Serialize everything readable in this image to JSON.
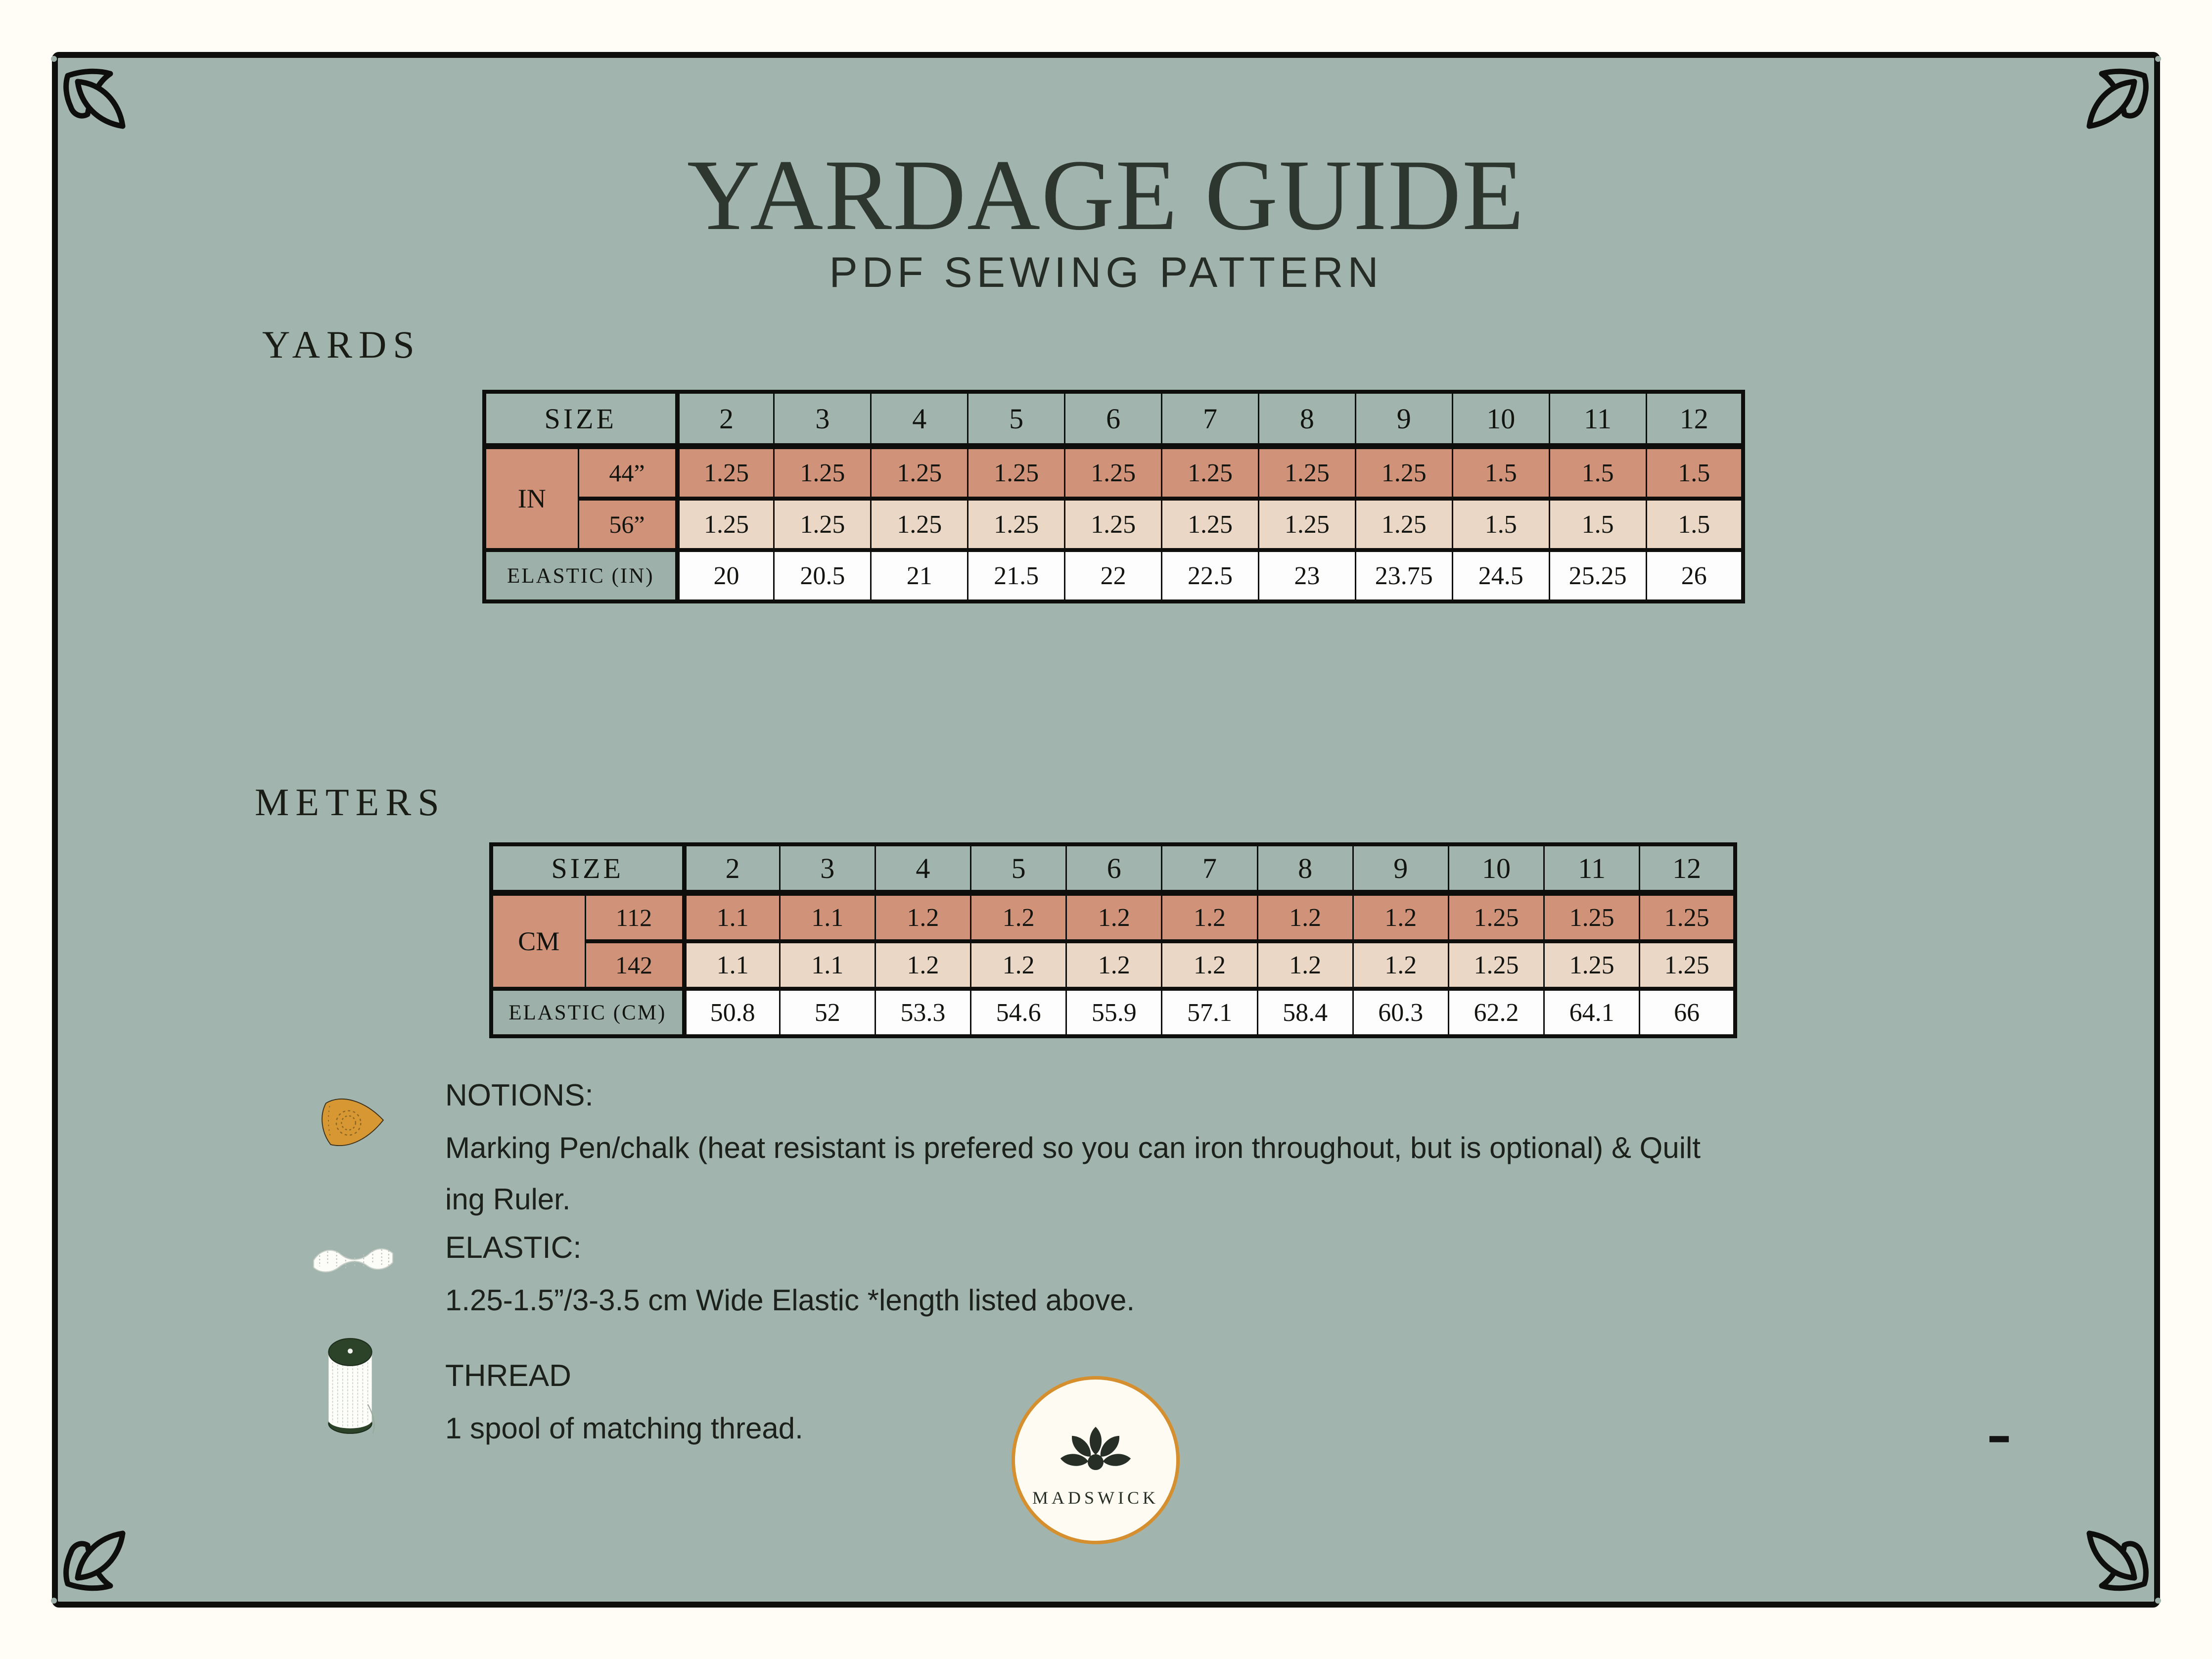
{
  "header": {
    "title": "YARDAGE GUIDE",
    "subtitle": "PDF SEWING PATTERN"
  },
  "sections": {
    "yards_label": "YARDS",
    "meters_label": "METERS"
  },
  "yards_table": {
    "size_header": "SIZE",
    "unit_label": "IN",
    "sizes": [
      "2",
      "3",
      "4",
      "5",
      "6",
      "7",
      "8",
      "9",
      "10",
      "11",
      "12"
    ],
    "rows": [
      {
        "label": "44”",
        "values": [
          "1.25",
          "1.25",
          "1.25",
          "1.25",
          "1.25",
          "1.25",
          "1.25",
          "1.25",
          "1.5",
          "1.5",
          "1.5"
        ]
      },
      {
        "label": "56”",
        "values": [
          "1.25",
          "1.25",
          "1.25",
          "1.25",
          "1.25",
          "1.25",
          "1.25",
          "1.25",
          "1.5",
          "1.5",
          "1.5"
        ]
      }
    ],
    "elastic_label": "ELASTIC (IN)",
    "elastic_values": [
      "20",
      "20.5",
      "21",
      "21.5",
      "22",
      "22.5",
      "23",
      "23.75",
      "24.5",
      "25.25",
      "26"
    ]
  },
  "meters_table": {
    "size_header": "SIZE",
    "unit_label": "CM",
    "sizes": [
      "2",
      "3",
      "4",
      "5",
      "6",
      "7",
      "8",
      "9",
      "10",
      "11",
      "12"
    ],
    "rows": [
      {
        "label": "112",
        "values": [
          "1.1",
          "1.1",
          "1.2",
          "1.2",
          "1.2",
          "1.2",
          "1.2",
          "1.2",
          "1.25",
          "1.25",
          "1.25"
        ]
      },
      {
        "label": "142",
        "values": [
          "1.1",
          "1.1",
          "1.2",
          "1.2",
          "1.2",
          "1.2",
          "1.2",
          "1.2",
          "1.25",
          "1.25",
          "1.25"
        ]
      }
    ],
    "elastic_label": "ELASTIC (CM)",
    "elastic_values": [
      "50.8",
      "52",
      "53.3",
      "54.6",
      "55.9",
      "57.1",
      "58.4",
      "60.3",
      "62.2",
      "64.1",
      "66"
    ]
  },
  "notions": {
    "heading": "NOTIONS:",
    "line1": "Marking Pen/chalk (heat resistant is prefered so you can iron throughout, but is optional) & Quilt",
    "line2": "ing Ruler."
  },
  "elastic": {
    "heading": "ELASTIC:",
    "description": "1.25-1.5”/3-3.5 cm Wide Elastic *length listed above."
  },
  "thread": {
    "heading": "THREAD",
    "description": "1 spool of matching thread."
  },
  "logo": {
    "brand": "MADSWICK"
  },
  "misc": {
    "dash": "-"
  },
  "colors": {
    "page_cream": "#fffdf6",
    "canvas_green": "#a1b5ae",
    "row_salmon": "#d09279",
    "row_peach": "#ead7c5",
    "row_white": "#fdfdfd",
    "elastic_cell_green": "#9db1aa",
    "line_black": "#0e0f0d",
    "logo_ring_orange": "#d68f2f",
    "chalk_orange": "#d79733",
    "spool_green": "#2c4229",
    "text_dark": "#1c211c"
  }
}
